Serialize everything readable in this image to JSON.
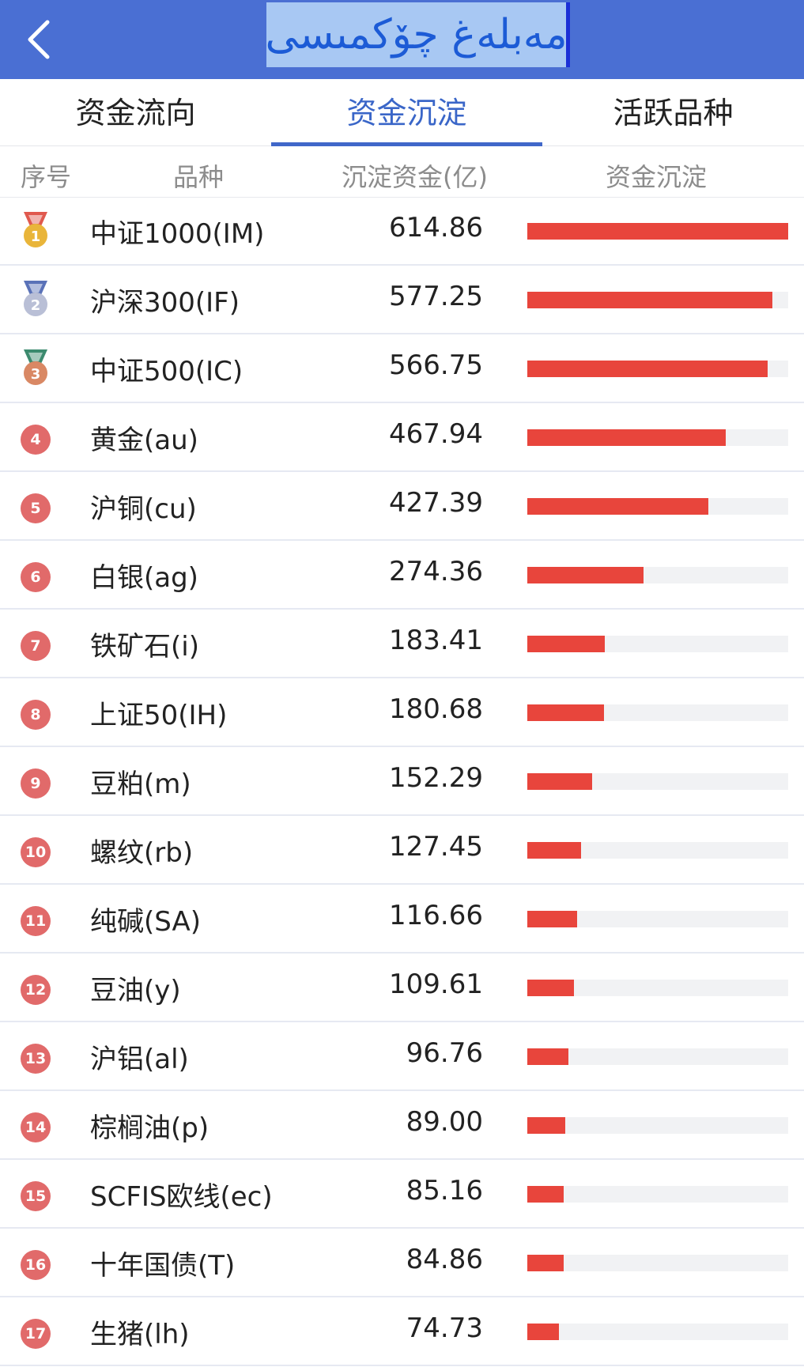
{
  "header": {
    "title": "مەبلەغ چۆكمىسى",
    "background": "#4a6fd3"
  },
  "tabs": [
    {
      "label": "资金流向",
      "active": false
    },
    {
      "label": "资金沉淀",
      "active": true
    },
    {
      "label": "活跃品种",
      "active": false
    }
  ],
  "columns": {
    "rank": "序号",
    "name": "品种",
    "amount": "沉淀资金(亿)",
    "bar": "资金沉淀"
  },
  "rows": [
    {
      "rank": "1",
      "name": "中证1000(IM)",
      "amount": "614.86",
      "level": 1.0
    },
    {
      "rank": "2",
      "name": "沪深300(IF)",
      "amount": "577.25",
      "level": 0.939
    },
    {
      "rank": "3",
      "name": "中证500(IC)",
      "amount": "566.75",
      "level": 0.922
    },
    {
      "rank": "4",
      "name": "黄金(au)",
      "amount": "467.94",
      "level": 0.761
    },
    {
      "rank": "5",
      "name": "沪铜(cu)",
      "amount": "427.39",
      "level": 0.695
    },
    {
      "rank": "6",
      "name": "白银(ag)",
      "amount": "274.36",
      "level": 0.446
    },
    {
      "rank": "7",
      "name": "铁矿石(i)",
      "amount": "183.41",
      "level": 0.298
    },
    {
      "rank": "8",
      "name": "上证50(IH)",
      "amount": "180.68",
      "level": 0.294
    },
    {
      "rank": "9",
      "name": "豆粕(m)",
      "amount": "152.29",
      "level": 0.248
    },
    {
      "rank": "10",
      "name": "螺纹(rb)",
      "amount": "127.45",
      "level": 0.207
    },
    {
      "rank": "11",
      "name": "纯碱(SA)",
      "amount": "116.66",
      "level": 0.19
    },
    {
      "rank": "12",
      "name": "豆油(y)",
      "amount": "109.61",
      "level": 0.178
    },
    {
      "rank": "13",
      "name": "沪铝(al)",
      "amount": "96.76",
      "level": 0.157
    },
    {
      "rank": "14",
      "name": "棕榈油(p)",
      "amount": "89.00",
      "level": 0.145
    },
    {
      "rank": "15",
      "name": "SCFIS欧线(ec)",
      "amount": "85.16",
      "level": 0.139
    },
    {
      "rank": "16",
      "name": "十年国债(T)",
      "amount": "84.86",
      "level": 0.138
    },
    {
      "rank": "17",
      "name": "生猪(lh)",
      "amount": "74.73",
      "level": 0.122
    }
  ],
  "colors": {
    "bar": "#e8453c",
    "track": "#f1f2f4",
    "badge": "#e16a6a",
    "gold": "#e9b53a",
    "silver": "#b9bfd6",
    "bronze": "#d98864"
  }
}
